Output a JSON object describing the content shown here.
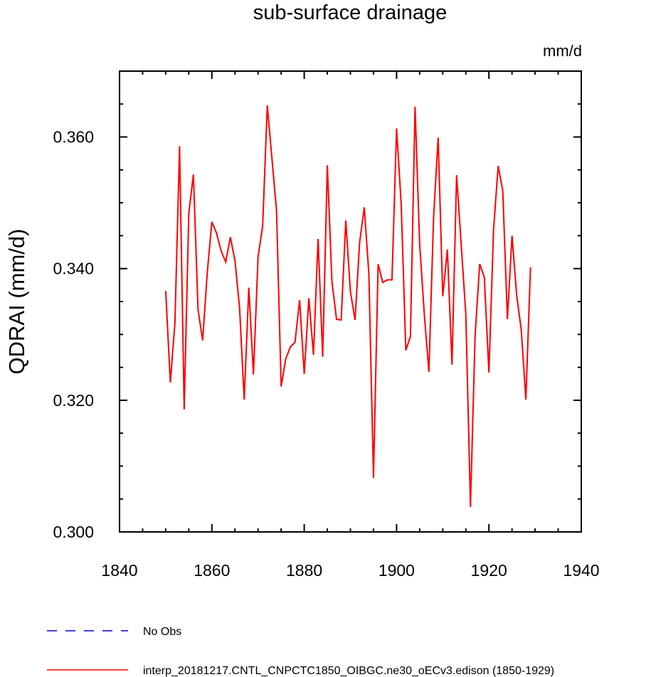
{
  "chart_data": {
    "type": "line",
    "title": "sub-surface drainage",
    "units": "mm/d",
    "xlabel": "",
    "ylabel": "QDRAI  (mm/d)",
    "xlim": [
      1840,
      1940
    ],
    "ylim": [
      0.3,
      0.37
    ],
    "xticks": [
      1840,
      1860,
      1880,
      1900,
      1920,
      1940
    ],
    "yticks": [
      0.3,
      0.32,
      0.34,
      0.36
    ],
    "ytick_labels": [
      "0.300",
      "0.320",
      "0.340",
      "0.360"
    ],
    "series": [
      {
        "name": "No Obs",
        "color": "#0000cc",
        "style": "dashed",
        "x": [],
        "values": []
      },
      {
        "name": "interp_20181217.CNTL_CNPCTC1850_OIBGC.ne30_oECv3.edison (1850-1929)",
        "color": "#ff0000",
        "style": "solid",
        "x": [
          1850,
          1851,
          1852,
          1853,
          1854,
          1855,
          1856,
          1857,
          1858,
          1859,
          1860,
          1861,
          1862,
          1863,
          1864,
          1865,
          1866,
          1867,
          1868,
          1869,
          1870,
          1871,
          1872,
          1873,
          1874,
          1875,
          1876,
          1877,
          1878,
          1879,
          1880,
          1881,
          1882,
          1883,
          1884,
          1885,
          1886,
          1887,
          1888,
          1889,
          1890,
          1891,
          1892,
          1893,
          1894,
          1895,
          1896,
          1897,
          1898,
          1899,
          1900,
          1901,
          1902,
          1903,
          1904,
          1905,
          1906,
          1907,
          1908,
          1909,
          1910,
          1911,
          1912,
          1913,
          1914,
          1915,
          1916,
          1917,
          1918,
          1919,
          1920,
          1921,
          1922,
          1923,
          1924,
          1925,
          1926,
          1927,
          1928,
          1929
        ],
        "values": [
          0.3366,
          0.3227,
          0.3318,
          0.3586,
          0.3186,
          0.3484,
          0.3543,
          0.3338,
          0.3291,
          0.3394,
          0.3471,
          0.3454,
          0.3427,
          0.341,
          0.3448,
          0.3412,
          0.334,
          0.3201,
          0.3371,
          0.3239,
          0.3418,
          0.3465,
          0.3648,
          0.3568,
          0.3488,
          0.3221,
          0.3263,
          0.3281,
          0.3288,
          0.3352,
          0.324,
          0.3355,
          0.3269,
          0.3445,
          0.3266,
          0.3557,
          0.338,
          0.3323,
          0.3322,
          0.3473,
          0.3365,
          0.3322,
          0.344,
          0.3493,
          0.3392,
          0.3082,
          0.3407,
          0.3379,
          0.3383,
          0.3383,
          0.3613,
          0.3498,
          0.3276,
          0.3297,
          0.3646,
          0.3437,
          0.3331,
          0.3243,
          0.3476,
          0.3599,
          0.3358,
          0.3429,
          0.3254,
          0.3542,
          0.3436,
          0.333,
          0.3038,
          0.3298,
          0.3407,
          0.3387,
          0.3242,
          0.3459,
          0.3556,
          0.3518,
          0.3323,
          0.345,
          0.336,
          0.3307,
          0.3201,
          0.3402
        ]
      }
    ]
  }
}
